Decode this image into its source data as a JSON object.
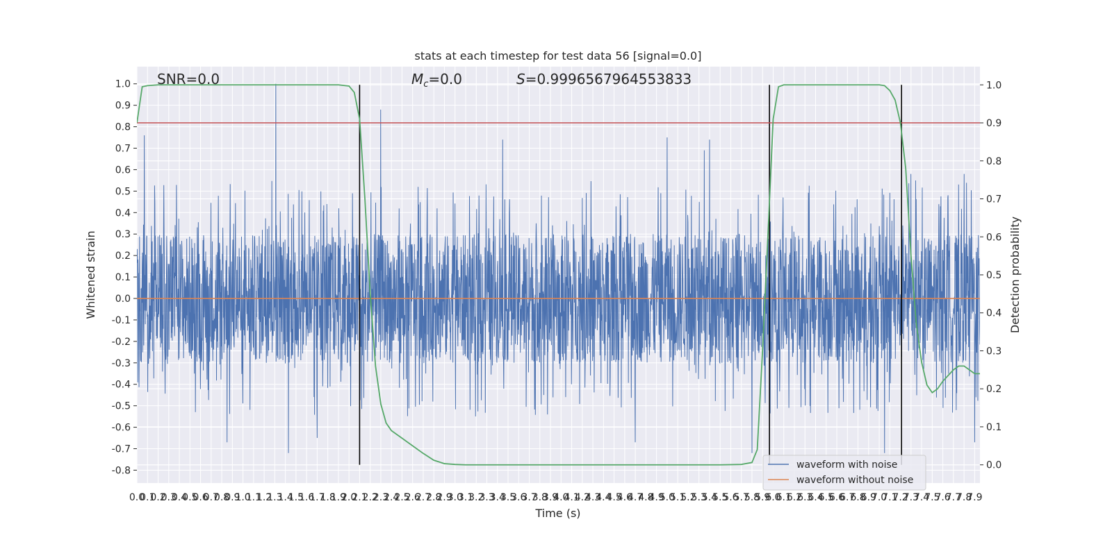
{
  "chart_data": {
    "type": "line",
    "title": "stats at each timestep for test data 56 [signal=0.0]",
    "xlabel": "Time (s)",
    "ylabel": "Whitened strain",
    "ylabel_right": "Detection probability",
    "xlim": [
      0.0,
      7.95
    ],
    "ylim": [
      -0.86,
      1.08
    ],
    "ylim_right": [
      -0.048,
      1.048
    ],
    "x_ticks": [
      "0.0",
      "0.1",
      "0.2",
      "0.3",
      "0.4",
      "0.5",
      "0.6",
      "0.7",
      "0.8",
      "0.9",
      "1.0",
      "1.1",
      "1.2",
      "1.3",
      "1.4",
      "1.5",
      "1.6",
      "1.7",
      "1.8",
      "1.9",
      "2.0",
      "2.1",
      "2.2",
      "2.3",
      "2.4",
      "2.5",
      "2.6",
      "2.7",
      "2.8",
      "2.9",
      "3.0",
      "3.1",
      "3.2",
      "3.3",
      "3.4",
      "3.5",
      "3.6",
      "3.7",
      "3.8",
      "3.9",
      "4.0",
      "4.1",
      "4.2",
      "4.3",
      "4.4",
      "4.5",
      "4.6",
      "4.7",
      "4.8",
      "4.9",
      "5.0",
      "5.1",
      "5.2",
      "5.3",
      "5.4",
      "5.5",
      "5.6",
      "5.7",
      "5.8",
      "5.9",
      "6.0",
      "6.1",
      "6.2",
      "6.3",
      "6.4",
      "6.5",
      "6.6",
      "6.7",
      "6.8",
      "6.9",
      "7.0",
      "7.1",
      "7.2",
      "7.3",
      "7.4",
      "7.5",
      "7.6",
      "7.7",
      "7.8",
      "7.9"
    ],
    "y_ticks": [
      "-0.8",
      "-0.7",
      "-0.6",
      "-0.5",
      "-0.4",
      "-0.3",
      "-0.2",
      "-0.1",
      "0.0",
      "0.1",
      "0.2",
      "0.3",
      "0.4",
      "0.5",
      "0.6",
      "0.7",
      "0.8",
      "0.9",
      "1.0"
    ],
    "y_ticks_right": [
      "0.0",
      "0.1",
      "0.2",
      "0.3",
      "0.4",
      "0.5",
      "0.6",
      "0.7",
      "0.8",
      "0.9",
      "1.0"
    ],
    "annotations": {
      "snr": "SNR=0.0",
      "mc_symbol": "M",
      "mc_subscript": "c",
      "mc_value": "=0.0",
      "s_symbol": "S",
      "s_value": "=0.9996567964553833"
    },
    "threshold": 0.9,
    "vertical_markers": [
      2.1,
      5.965,
      7.21
    ],
    "noise": {
      "typical_amplitude": [
        -0.3,
        0.3
      ],
      "peaks": [
        {
          "x": 0.07,
          "y": 0.76
        },
        {
          "x": 1.31,
          "y": 1.0
        },
        {
          "x": 2.3,
          "y": 0.88
        },
        {
          "x": 3.45,
          "y": 0.74
        },
        {
          "x": 5.0,
          "y": 0.75
        },
        {
          "x": 5.35,
          "y": 0.69
        },
        {
          "x": 5.4,
          "y": 0.74
        },
        {
          "x": 7.3,
          "y": 0.58
        },
        {
          "x": 7.8,
          "y": 0.58
        },
        {
          "x": 1.43,
          "y": -0.72
        },
        {
          "x": 1.7,
          "y": -0.65
        },
        {
          "x": 4.7,
          "y": -0.67
        },
        {
          "x": 5.8,
          "y": -0.72
        },
        {
          "x": 7.05,
          "y": -0.72
        },
        {
          "x": 7.9,
          "y": -0.67
        },
        {
          "x": 0.85,
          "y": -0.67
        }
      ]
    },
    "series": [
      {
        "name": "waveform with noise",
        "axis": "left",
        "color": "#4c72b0"
      },
      {
        "name": "waveform without noise",
        "axis": "left",
        "color": "#dd8452",
        "x": [
          0.0,
          7.95
        ],
        "y": [
          0.0,
          0.0
        ]
      },
      {
        "axis": "right",
        "color": "#55a868",
        "x": [
          0.0,
          0.05,
          0.1,
          0.2,
          0.5,
          1.0,
          1.5,
          1.9,
          2.0,
          2.05,
          2.1,
          2.15,
          2.2,
          2.25,
          2.3,
          2.35,
          2.4,
          2.5,
          2.6,
          2.7,
          2.8,
          2.9,
          3.0,
          3.1,
          3.3,
          4.0,
          5.0,
          5.5,
          5.7,
          5.8,
          5.85,
          5.9,
          5.95,
          6.0,
          6.05,
          6.1,
          6.2,
          6.5,
          7.0,
          7.05,
          7.1,
          7.15,
          7.2,
          7.25,
          7.3,
          7.35,
          7.4,
          7.45,
          7.5,
          7.55,
          7.6,
          7.7,
          7.75,
          7.8,
          7.85,
          7.9,
          7.95
        ],
        "y": [
          0.9,
          0.995,
          0.998,
          1.0,
          1.0,
          1.0,
          1.0,
          1.0,
          0.997,
          0.98,
          0.91,
          0.7,
          0.45,
          0.26,
          0.16,
          0.11,
          0.09,
          0.07,
          0.05,
          0.03,
          0.012,
          0.003,
          0.001,
          0.0,
          0.0,
          0.0,
          0.0,
          0.0,
          0.001,
          0.006,
          0.04,
          0.3,
          0.6,
          0.91,
          0.995,
          1.0,
          1.0,
          1.0,
          1.0,
          0.998,
          0.985,
          0.96,
          0.9,
          0.78,
          0.55,
          0.37,
          0.27,
          0.21,
          0.19,
          0.2,
          0.22,
          0.25,
          0.26,
          0.26,
          0.25,
          0.24,
          0.24
        ]
      },
      {
        "axis": "right",
        "color": "#c44e52",
        "x": [
          0.0,
          7.95
        ],
        "y": [
          0.9,
          0.9
        ]
      }
    ],
    "legend": {
      "position": "lower-right"
    },
    "grid": true,
    "colors": {
      "background": "#eaeaf2",
      "grid": "#ffffff",
      "noise": "#4c72b0",
      "clean": "#dd8452",
      "prob": "#55a868",
      "threshold": "#c44e52",
      "markers": "#000000"
    }
  }
}
